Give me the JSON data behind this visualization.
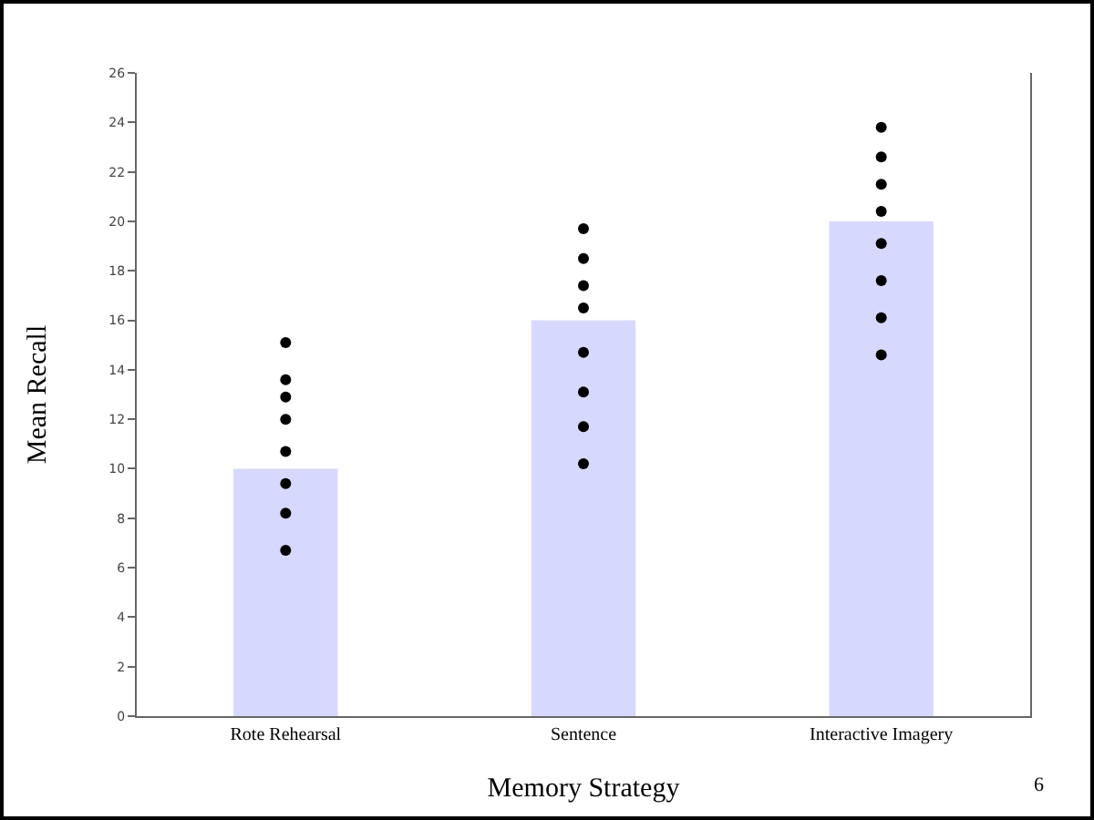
{
  "chart_data": {
    "type": "bar",
    "xlabel": "Memory Strategy",
    "ylabel": "Mean Recall",
    "categories": [
      "Rote Rehearsal",
      "Sentence",
      "Interactive Imagery"
    ],
    "series": [
      {
        "color": "#d7d8fd",
        "values": [
          10,
          16,
          20
        ]
      },
      {
        "type": "scatter",
        "color": "#000000",
        "x": [
          "Rote Rehearsal",
          "Rote Rehearsal",
          "Rote Rehearsal",
          "Rote Rehearsal",
          "Rote Rehearsal",
          "Rote Rehearsal",
          "Rote Rehearsal",
          "Rote Rehearsal",
          "Sentence",
          "Sentence",
          "Sentence",
          "Sentence",
          "Sentence",
          "Sentence",
          "Sentence",
          "Sentence",
          "Interactive Imagery",
          "Interactive Imagery",
          "Interactive Imagery",
          "Interactive Imagery",
          "Interactive Imagery",
          "Interactive Imagery",
          "Interactive Imagery",
          "Interactive Imagery"
        ],
        "values": [
          15.1,
          13.6,
          12.9,
          12.0,
          10.7,
          9.4,
          8.2,
          6.7,
          19.7,
          18.5,
          17.4,
          16.5,
          14.7,
          13.1,
          11.7,
          10.2,
          23.8,
          22.6,
          21.5,
          20.4,
          19.1,
          17.6,
          16.1,
          14.6
        ]
      }
    ],
    "ylim": [
      0,
      26
    ],
    "yticks": [
      0,
      2,
      4,
      6,
      8,
      10,
      12,
      14,
      16,
      18,
      20,
      22,
      24,
      26
    ],
    "grid": false,
    "marker": "circle",
    "annotations": [
      "6"
    ]
  }
}
